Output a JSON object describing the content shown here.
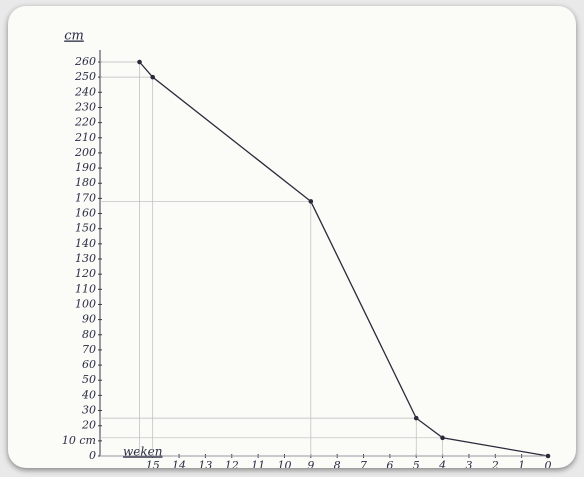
{
  "chart_data": {
    "type": "line",
    "y_label": "cm",
    "x_label": "weken",
    "x": [
      15.5,
      15,
      9,
      5,
      4,
      0
    ],
    "series": [
      {
        "name": null,
        "color": "#2a2a3a",
        "values": [
          260,
          250,
          168,
          25,
          12,
          0
        ]
      }
    ],
    "xlim": [
      17,
      0
    ],
    "xticks": [
      15,
      14,
      13,
      12,
      11,
      10,
      9,
      8,
      7,
      6,
      5,
      4,
      3,
      2,
      1,
      0
    ],
    "ylim": [
      0,
      260
    ],
    "yticks": [
      0,
      {
        "value": 10,
        "label": "10 cm"
      },
      20,
      30,
      40,
      50,
      60,
      70,
      80,
      90,
      100,
      110,
      120,
      130,
      140,
      150,
      160,
      170,
      180,
      190,
      200,
      210,
      220,
      230,
      240,
      250,
      260
    ]
  }
}
